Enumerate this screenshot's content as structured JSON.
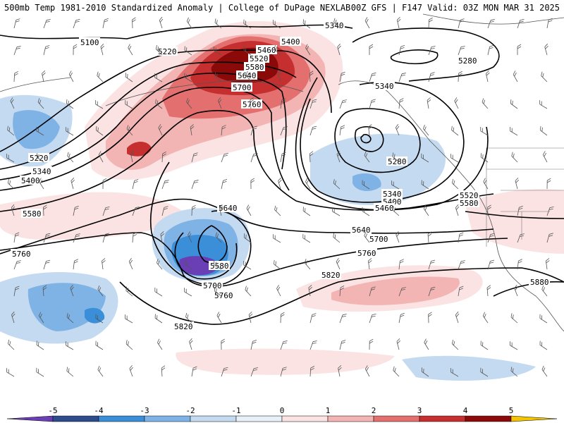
{
  "header": {
    "left_title": "500mb Temp 1981-2010 Standardized Anomaly | College of DuPage NEXLAB",
    "right_title": "00Z GFS | F147 Valid: 03Z MON MAR 31 2025"
  },
  "contour_labels": [
    "5100",
    "5220",
    "5340",
    "5400",
    "5460",
    "5520",
    "5580",
    "5640",
    "5700",
    "5760",
    "5820",
    "5880",
    "5280",
    "5340",
    "5220",
    "5340",
    "5400",
    "5580",
    "5760",
    "5640",
    "5580",
    "5700",
    "5760",
    "5820",
    "5340",
    "5400",
    "5460",
    "5520",
    "5580",
    "5640",
    "5700",
    "5760",
    "5820",
    "5280",
    "5880",
    "5400",
    "5460"
  ],
  "colorbar": {
    "ticks": [
      "-5",
      "-4",
      "-3",
      "-2",
      "-1",
      "0",
      "1",
      "2",
      "3",
      "4",
      "5"
    ],
    "colors": [
      "#6a3fb5",
      "#2c4c8c",
      "#3a8fd8",
      "#7fb2e5",
      "#c4daf0",
      "#e8f0f8",
      "#fbe3e3",
      "#f3b4b4",
      "#e36f6f",
      "#c62f2f",
      "#8a0a0a",
      "#f5c400"
    ]
  }
}
